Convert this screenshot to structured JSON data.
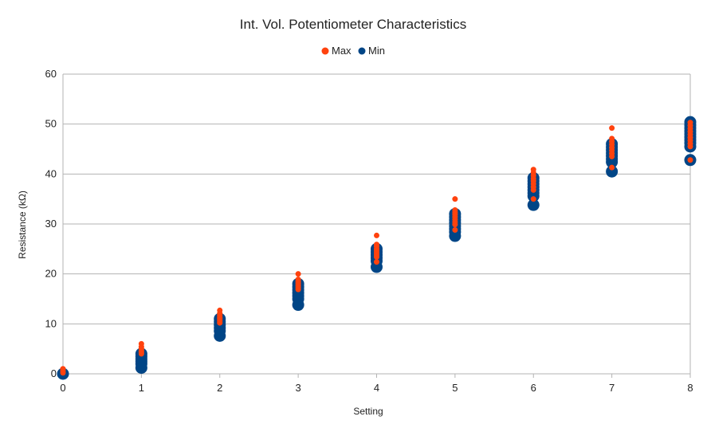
{
  "chart_data": {
    "type": "scatter",
    "title": "Int. Vol. Potentiometer Characteristics",
    "xlabel": "Setting",
    "ylabel": "Resistance (kΩ)",
    "xlim": [
      0,
      8
    ],
    "ylim": [
      0,
      60
    ],
    "xticks": [
      0,
      1,
      2,
      3,
      4,
      5,
      6,
      7,
      8
    ],
    "yticks": [
      0,
      10,
      20,
      30,
      40,
      50,
      60
    ],
    "grid": true,
    "legend_position": "top",
    "series": [
      {
        "name": "Max",
        "color": "#ff420e",
        "marker": "small-circle",
        "points": [
          [
            0,
            1.0
          ],
          [
            0,
            0.6
          ],
          [
            0,
            0.2
          ],
          [
            1,
            6.0
          ],
          [
            1,
            5.4
          ],
          [
            1,
            5.0
          ],
          [
            1,
            4.6
          ],
          [
            1,
            4.3
          ],
          [
            1,
            4.0
          ],
          [
            2,
            12.7
          ],
          [
            2,
            12.1
          ],
          [
            2,
            11.7
          ],
          [
            2,
            11.3
          ],
          [
            2,
            11.0
          ],
          [
            2,
            10.6
          ],
          [
            2,
            10.2
          ],
          [
            3,
            20.0
          ],
          [
            3,
            18.9
          ],
          [
            3,
            18.5
          ],
          [
            3,
            18.1
          ],
          [
            3,
            17.7
          ],
          [
            3,
            17.3
          ],
          [
            3,
            16.9
          ],
          [
            4,
            27.7
          ],
          [
            4,
            25.9
          ],
          [
            4,
            25.5
          ],
          [
            4,
            25.0
          ],
          [
            4,
            24.6
          ],
          [
            4,
            24.2
          ],
          [
            4,
            23.8
          ],
          [
            4,
            23.4
          ],
          [
            4,
            22.4
          ],
          [
            5,
            35.0
          ],
          [
            5,
            32.8
          ],
          [
            5,
            32.3
          ],
          [
            5,
            31.9
          ],
          [
            5,
            31.4
          ],
          [
            5,
            30.9
          ],
          [
            5,
            30.4
          ],
          [
            5,
            29.9
          ],
          [
            5,
            28.8
          ],
          [
            6,
            40.9
          ],
          [
            6,
            40.3
          ],
          [
            6,
            39.7
          ],
          [
            6,
            39.1
          ],
          [
            6,
            38.6
          ],
          [
            6,
            38.0
          ],
          [
            6,
            37.4
          ],
          [
            6,
            36.8
          ],
          [
            6,
            35.0
          ],
          [
            7,
            49.2
          ],
          [
            7,
            47.1
          ],
          [
            7,
            46.5
          ],
          [
            7,
            45.9
          ],
          [
            7,
            45.3
          ],
          [
            7,
            44.7
          ],
          [
            7,
            44.1
          ],
          [
            7,
            43.5
          ],
          [
            7,
            41.3
          ],
          [
            8,
            50.3
          ],
          [
            8,
            49.7
          ],
          [
            8,
            49.1
          ],
          [
            8,
            48.5
          ],
          [
            8,
            47.9
          ],
          [
            8,
            47.3
          ],
          [
            8,
            46.7
          ],
          [
            8,
            46.1
          ],
          [
            8,
            45.5
          ],
          [
            8,
            42.8
          ]
        ]
      },
      {
        "name": "Min",
        "color": "#004586",
        "marker": "large-circle",
        "points": [
          [
            0,
            0.0
          ],
          [
            1,
            4.0
          ],
          [
            1,
            3.5
          ],
          [
            1,
            3.0
          ],
          [
            1,
            2.5
          ],
          [
            1,
            2.0
          ],
          [
            1,
            1.2
          ],
          [
            2,
            11.0
          ],
          [
            2,
            10.4
          ],
          [
            2,
            9.8
          ],
          [
            2,
            9.2
          ],
          [
            2,
            8.6
          ],
          [
            2,
            7.6
          ],
          [
            3,
            18.0
          ],
          [
            3,
            17.4
          ],
          [
            3,
            16.8
          ],
          [
            3,
            16.2
          ],
          [
            3,
            15.6
          ],
          [
            3,
            15.0
          ],
          [
            3,
            13.8
          ],
          [
            4,
            25.0
          ],
          [
            4,
            24.4
          ],
          [
            4,
            23.8
          ],
          [
            4,
            23.2
          ],
          [
            4,
            22.6
          ],
          [
            4,
            21.4
          ],
          [
            5,
            32.0
          ],
          [
            5,
            31.4
          ],
          [
            5,
            30.8
          ],
          [
            5,
            30.2
          ],
          [
            5,
            29.6
          ],
          [
            5,
            29.0
          ],
          [
            5,
            28.4
          ],
          [
            5,
            27.6
          ],
          [
            6,
            39.2
          ],
          [
            6,
            38.6
          ],
          [
            6,
            38.0
          ],
          [
            6,
            37.4
          ],
          [
            6,
            36.8
          ],
          [
            6,
            36.2
          ],
          [
            6,
            35.6
          ],
          [
            6,
            33.8
          ],
          [
            7,
            46.0
          ],
          [
            7,
            45.4
          ],
          [
            7,
            44.8
          ],
          [
            7,
            44.2
          ],
          [
            7,
            43.6
          ],
          [
            7,
            43.0
          ],
          [
            7,
            42.4
          ],
          [
            7,
            40.5
          ],
          [
            8,
            50.4
          ],
          [
            8,
            49.8
          ],
          [
            8,
            49.2
          ],
          [
            8,
            48.6
          ],
          [
            8,
            48.0
          ],
          [
            8,
            47.4
          ],
          [
            8,
            46.8
          ],
          [
            8,
            46.2
          ],
          [
            8,
            45.5
          ],
          [
            8,
            42.8
          ]
        ]
      }
    ]
  }
}
